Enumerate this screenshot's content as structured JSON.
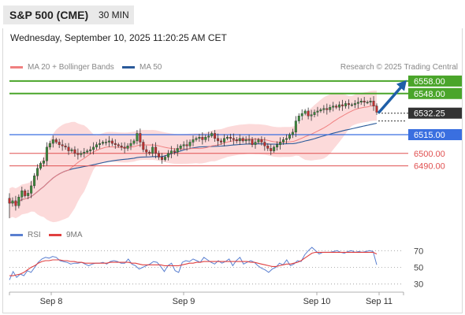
{
  "header": {
    "symbol": "S&P 500 (CME)",
    "timeframe": "30 MIN",
    "datetime": "Wednesday, September 10, 2025 11:20:25 AM CET",
    "copyright": "Research © 2025 Trading Central"
  },
  "legend": {
    "bollinger": "MA 20 + Bollinger Bands",
    "ma50": "MA 50",
    "rsi": "RSI",
    "rsi_ma": "9MA"
  },
  "colors": {
    "bollinger": "#f08080",
    "band_fill": "#fbd3d3",
    "ma50": "#2a5a9a",
    "resistance": "#4aa52a",
    "support": "#e05050",
    "pivot": "#3a6fe0",
    "arrow": "#1f5fa8",
    "candle_up": "#3a8a3a",
    "candle_down": "#c03030",
    "rsi": "#5a7fd0",
    "rsi_ma": "#e04040"
  },
  "chart_data": [
    {
      "type": "candlestick",
      "xlabels": [
        "Sep 8",
        "Sep 9",
        "Sep 10",
        "Sep 11"
      ],
      "levels": [
        {
          "value": 6558.0,
          "label": "6558.00",
          "kind": "resistance"
        },
        {
          "value": 6548.0,
          "label": "6548.00",
          "kind": "resistance"
        },
        {
          "value": 6532.25,
          "label": "6532.25",
          "kind": "last"
        },
        {
          "value": 6515.0,
          "label": "6515.00",
          "kind": "pivot"
        },
        {
          "value": 6500.0,
          "label": "6500.00",
          "kind": "support"
        },
        {
          "value": 6490.0,
          "label": "6490.00",
          "kind": "support"
        }
      ],
      "ylim": [
        6443,
        6563
      ],
      "close": [
        6460,
        6462,
        6458,
        6465,
        6470,
        6466,
        6468,
        6474,
        6482,
        6488,
        6492,
        6494,
        6505,
        6508,
        6511,
        6509,
        6507,
        6506,
        6505,
        6502,
        6503,
        6500,
        6499,
        6500,
        6501,
        6502,
        6503,
        6505,
        6507,
        6508,
        6509,
        6509,
        6510,
        6508,
        6507,
        6506,
        6505,
        6504,
        6506,
        6508,
        6510,
        6516,
        6509,
        6503,
        6501,
        6500,
        6505,
        6500,
        6497,
        6495,
        6497,
        6500,
        6502,
        6501,
        6504,
        6506,
        6507,
        6506,
        6509,
        6511,
        6512,
        6513,
        6511,
        6513,
        6514,
        6516,
        6512,
        6510,
        6509,
        6512,
        6513,
        6512,
        6511,
        6510,
        6512,
        6510,
        6511,
        6511,
        6507,
        6509,
        6511,
        6509,
        6506,
        6504,
        6502,
        6505,
        6507,
        6509,
        6511,
        6512,
        6515,
        6517,
        6526,
        6530,
        6532,
        6534,
        6530,
        6531,
        6533,
        6534,
        6535,
        6536,
        6535,
        6537,
        6538,
        6537,
        6539,
        6538,
        6540,
        6539,
        6539,
        6540,
        6541,
        6542,
        6541,
        6541,
        6542,
        6538,
        6533
      ],
      "rsi": {
        "levels": [
          70,
          50,
          30
        ],
        "ylim": [
          25,
          75
        ],
        "rsi": [
          35,
          45,
          38,
          42,
          40,
          46,
          44,
          50,
          56,
          60,
          62,
          61,
          63,
          62,
          58,
          57,
          56,
          54,
          55,
          55,
          56,
          54,
          52,
          54,
          55,
          55,
          56,
          54,
          57,
          58,
          57,
          55,
          55,
          60,
          54,
          52,
          48,
          50,
          52,
          54,
          57,
          56,
          51,
          45,
          52,
          55,
          46,
          44,
          56,
          58,
          57,
          60,
          58,
          56,
          62,
          59,
          56,
          54,
          58,
          55,
          57,
          60,
          52,
          58,
          62,
          54,
          56,
          58,
          56,
          52,
          49,
          47,
          44,
          48,
          50,
          55,
          53,
          59,
          52,
          54,
          58,
          57,
          65,
          70,
          74,
          70,
          66,
          68,
          68,
          68,
          69,
          70,
          68,
          67,
          69,
          70,
          68,
          69,
          68,
          69,
          70,
          69,
          53
        ],
        "ma": [
          40,
          40,
          41,
          42,
          44,
          47,
          50,
          52,
          55,
          57,
          58,
          58,
          59,
          59,
          59,
          58,
          58,
          57,
          57,
          56,
          56,
          55,
          55,
          55,
          55,
          55,
          55,
          55,
          56,
          56,
          56,
          56,
          56,
          56,
          55,
          55,
          54,
          53,
          53,
          53,
          53,
          53,
          53,
          52,
          52,
          52,
          52,
          52,
          53,
          54,
          55,
          55,
          56,
          56,
          57,
          57,
          57,
          57,
          57,
          57,
          57,
          57,
          57,
          57,
          57,
          57,
          57,
          56,
          56,
          55,
          54,
          53,
          52,
          51,
          51,
          52,
          53,
          54,
          54,
          55,
          56,
          58,
          61,
          64,
          67,
          68,
          68,
          68,
          68,
          68,
          68,
          68,
          68,
          68,
          68,
          68,
          68,
          68,
          68,
          68,
          68,
          68,
          66
        ]
      }
    }
  ]
}
